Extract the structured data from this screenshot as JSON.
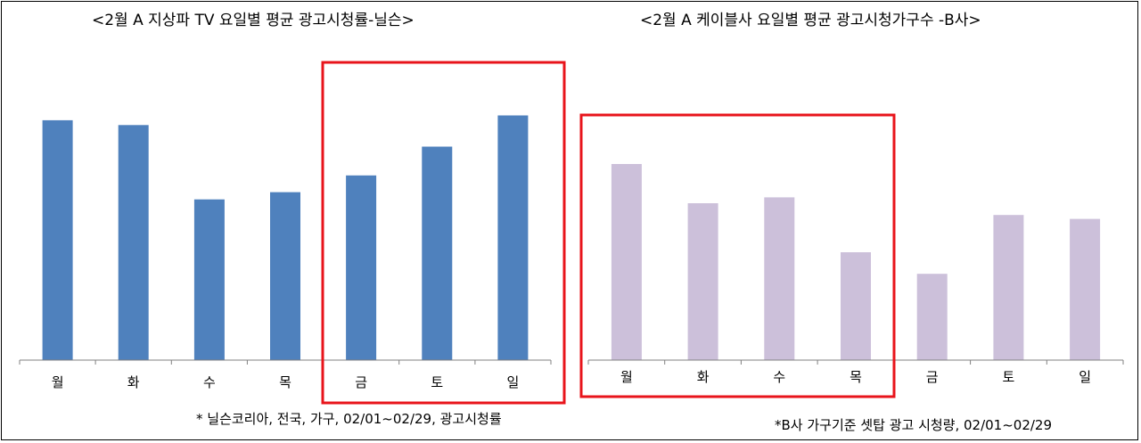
{
  "colors": {
    "series_left": "#4f81bd",
    "series_right": "#ccc0da",
    "highlight_box": "#e8141b",
    "axis": "#808080"
  },
  "notes": {
    "left": "* 닐슨코리아, 전국, 가구, 02/01~02/29, 광고시청률",
    "right": "*B사  가구기준 셋탑 광고 시청량, 02/01~02/29"
  },
  "chart_data": [
    {
      "type": "bar",
      "title": "<2월 A 지상파 TV 요일별 평균 광고시청률-닐슨>",
      "categories": [
        "월",
        "화",
        "수",
        "목",
        "금",
        "토",
        "일"
      ],
      "series": [
        {
          "values": [
            100,
            98,
            67,
            70,
            77,
            89,
            102
          ]
        }
      ],
      "ylim": [
        0,
        110
      ],
      "y_axis_shown": false,
      "grid": false,
      "legend": "none",
      "highlighted_categories": [
        "금",
        "토",
        "일"
      ]
    },
    {
      "type": "bar",
      "title": "<2월 A 케이블사 요일별 평균 광고시청가구수 -B사>",
      "categories": [
        "월",
        "화",
        "수",
        "목",
        "금",
        "토",
        "일"
      ],
      "series": [
        {
          "values": [
            100,
            80,
            83,
            55,
            44,
            74,
            72
          ]
        }
      ],
      "ylim": [
        0,
        110
      ],
      "y_axis_shown": false,
      "grid": false,
      "legend": "none",
      "highlighted_categories": [
        "월",
        "화",
        "수",
        "목"
      ]
    }
  ]
}
